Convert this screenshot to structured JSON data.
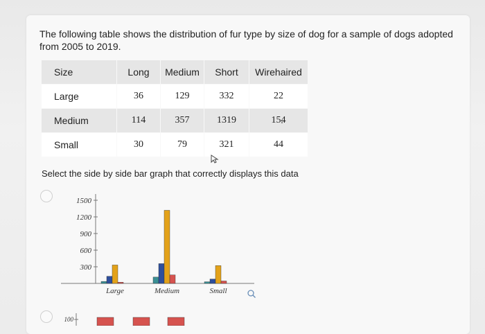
{
  "question": {
    "text": "The following table shows the distribution of fur type by size of dog for a sample of dogs adopted from 2005 to 2019."
  },
  "table": {
    "headers": [
      "Size",
      "Long",
      "Medium",
      "Short",
      "Wirehaired"
    ],
    "rows": [
      [
        "Large",
        "36",
        "129",
        "332",
        "22"
      ],
      [
        "Medium",
        "114",
        "357",
        "1319",
        "154"
      ],
      [
        "Small",
        "30",
        "79",
        "321",
        "44"
      ]
    ]
  },
  "instruction": "Select the side by side bar graph that correctly displays this data",
  "colors": {
    "long": "#3a8f94",
    "medium": "#2e4f9c",
    "short": "#e3a21a",
    "wirehaired": "#d6534f"
  },
  "chart_data": {
    "type": "bar",
    "categories": [
      "Large",
      "Medium",
      "Small"
    ],
    "series": [
      {
        "values": [
          36,
          114,
          30
        ]
      },
      {
        "values": [
          129,
          357,
          79
        ]
      },
      {
        "values": [
          332,
          1319,
          321
        ]
      },
      {
        "values": [
          22,
          154,
          44
        ]
      }
    ],
    "yticks": [
      "300",
      "600",
      "900",
      "1200",
      "1500"
    ],
    "ylim": [
      0,
      1500
    ],
    "next_option_tick": "100"
  }
}
